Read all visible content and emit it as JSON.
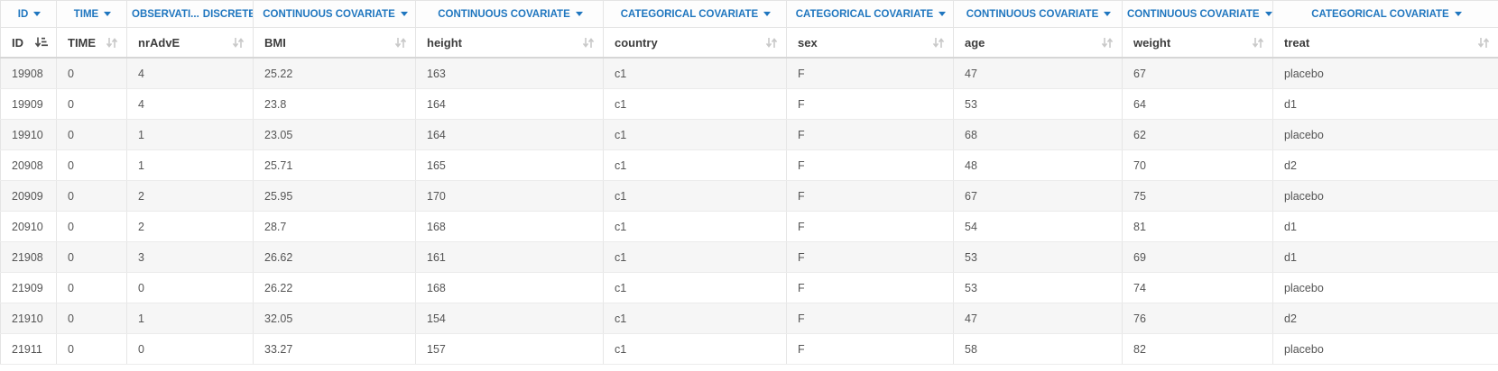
{
  "colors": {
    "accent_blue": "#1f76bf",
    "header_text": "#3d3d3d",
    "cell_text": "#555555",
    "row_stripe": "#f6f6f6",
    "border": "#e4e4e4",
    "inactive_sort_icon": "#c9c9c9",
    "active_sort_icon": "#4d4d4d"
  },
  "table": {
    "type_row": [
      {
        "column": "ID",
        "parts": [
          "ID"
        ],
        "caret": true
      },
      {
        "column": "TIME",
        "parts": [
          "TIME"
        ],
        "caret": true
      },
      {
        "column": "nrAdvE",
        "parts": [
          "OBSERVATI...",
          "DISCRETE"
        ],
        "caret": true
      },
      {
        "column": "BMI",
        "parts": [
          "CONTINUOUS COVARIATE"
        ],
        "caret": true
      },
      {
        "column": "height",
        "parts": [
          "CONTINUOUS COVARIATE"
        ],
        "caret": true
      },
      {
        "column": "country",
        "parts": [
          "CATEGORICAL COVARIATE"
        ],
        "caret": true
      },
      {
        "column": "sex",
        "parts": [
          "CATEGORICAL COVARIATE"
        ],
        "caret": true
      },
      {
        "column": "age",
        "parts": [
          "CONTINUOUS COVARIATE"
        ],
        "caret": true
      },
      {
        "column": "weight",
        "parts": [
          "CONTINUOUS COVARIATE"
        ],
        "caret": true
      },
      {
        "column": "treat",
        "parts": [
          "CATEGORICAL COVARIATE"
        ],
        "caret": true
      }
    ],
    "columns": [
      {
        "name": "ID",
        "sort": "asc"
      },
      {
        "name": "TIME",
        "sort": "none"
      },
      {
        "name": "nrAdvE",
        "sort": "none"
      },
      {
        "name": "BMI",
        "sort": "none"
      },
      {
        "name": "height",
        "sort": "none"
      },
      {
        "name": "country",
        "sort": "none"
      },
      {
        "name": "sex",
        "sort": "none"
      },
      {
        "name": "age",
        "sort": "none"
      },
      {
        "name": "weight",
        "sort": "none"
      },
      {
        "name": "treat",
        "sort": "none"
      }
    ],
    "rows": [
      [
        "19908",
        "0",
        "4",
        "25.22",
        "163",
        "c1",
        "F",
        "47",
        "67",
        "placebo"
      ],
      [
        "19909",
        "0",
        "4",
        "23.8",
        "164",
        "c1",
        "F",
        "53",
        "64",
        "d1"
      ],
      [
        "19910",
        "0",
        "1",
        "23.05",
        "164",
        "c1",
        "F",
        "68",
        "62",
        "placebo"
      ],
      [
        "20908",
        "0",
        "1",
        "25.71",
        "165",
        "c1",
        "F",
        "48",
        "70",
        "d2"
      ],
      [
        "20909",
        "0",
        "2",
        "25.95",
        "170",
        "c1",
        "F",
        "67",
        "75",
        "placebo"
      ],
      [
        "20910",
        "0",
        "2",
        "28.7",
        "168",
        "c1",
        "F",
        "54",
        "81",
        "d1"
      ],
      [
        "21908",
        "0",
        "3",
        "26.62",
        "161",
        "c1",
        "F",
        "53",
        "69",
        "d1"
      ],
      [
        "21909",
        "0",
        "0",
        "26.22",
        "168",
        "c1",
        "F",
        "53",
        "74",
        "placebo"
      ],
      [
        "21910",
        "0",
        "1",
        "32.05",
        "154",
        "c1",
        "F",
        "47",
        "76",
        "d2"
      ],
      [
        "21911",
        "0",
        "0",
        "33.27",
        "157",
        "c1",
        "F",
        "58",
        "82",
        "placebo"
      ]
    ]
  }
}
